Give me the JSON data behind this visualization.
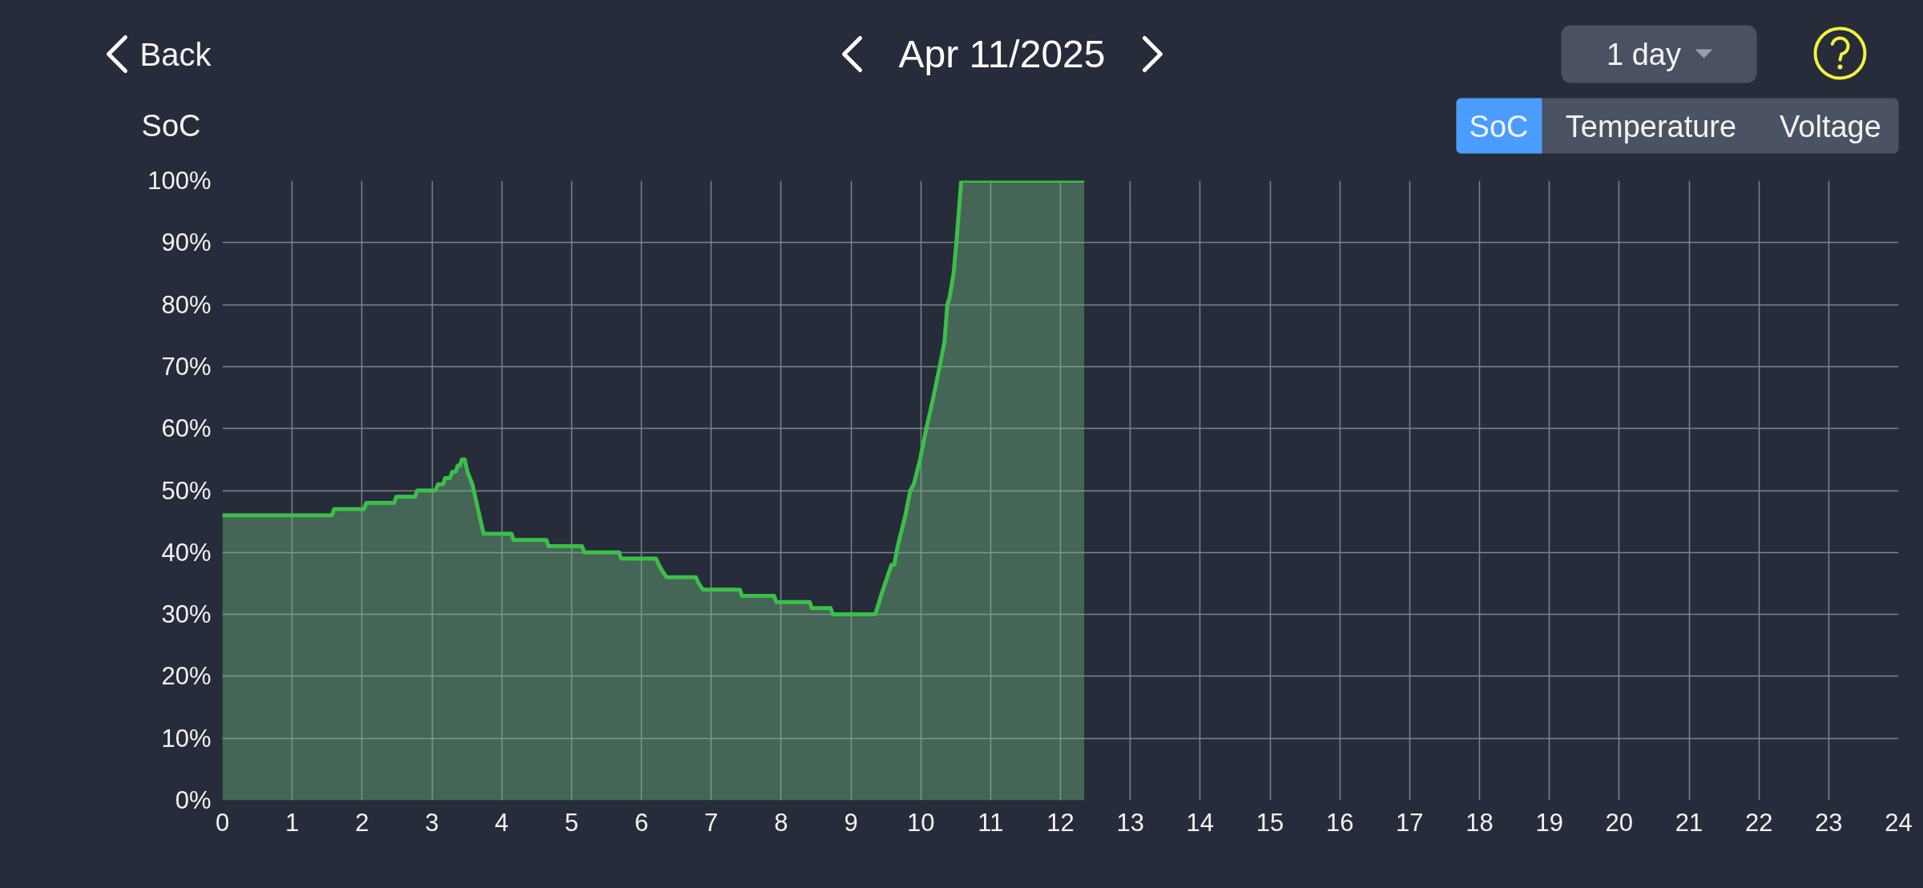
{
  "chart_data": {
    "type": "area",
    "title": "Apr 11/2025",
    "ylabel": "SoC",
    "annotations": [
      "Back",
      "1 day",
      "SoC",
      "Temperature",
      "Voltage"
    ],
    "x": [
      0,
      1.57,
      1.6,
      2.03,
      2.06,
      2.46,
      2.49,
      2.76,
      2.79,
      3.05,
      3.09,
      3.16,
      3.19,
      3.26,
      3.29,
      3.34,
      3.37,
      3.4,
      3.43,
      3.47,
      3.51,
      3.58,
      3.64,
      3.7,
      3.74,
      4.14,
      4.17,
      4.64,
      4.67,
      5.15,
      5.18,
      5.68,
      5.71,
      6.21,
      6.25,
      6.3,
      6.36,
      6.78,
      6.82,
      6.88,
      7.41,
      7.44,
      7.9,
      7.93,
      8.41,
      8.44,
      8.71,
      8.74,
      9.35,
      9.43,
      9.52,
      9.58,
      9.62,
      9.67,
      9.78,
      9.85,
      9.9,
      9.99,
      10.08,
      10.18,
      10.27,
      10.34,
      10.38,
      10.41,
      10.47,
      10.51,
      10.58,
      12.34
    ],
    "series": [
      {
        "color": "#3cbf49",
        "values": [
          46,
          46,
          47,
          47,
          48,
          48,
          49,
          49,
          50,
          50,
          51,
          51,
          52,
          52,
          53,
          53,
          54,
          54,
          55,
          55,
          53,
          51,
          48,
          45,
          43,
          43,
          42,
          42,
          41,
          41,
          40,
          40,
          39,
          39,
          38,
          37,
          36,
          36,
          35,
          34,
          34,
          33,
          33,
          32,
          32,
          31,
          31,
          30,
          30,
          33,
          36,
          38,
          38,
          41,
          46,
          50,
          51,
          55,
          60,
          65,
          70,
          74,
          80,
          81,
          85,
          90,
          100,
          100
        ]
      }
    ],
    "xlim": [
      0,
      24
    ],
    "xticks": [
      0,
      1,
      2,
      3,
      4,
      5,
      6,
      7,
      8,
      9,
      10,
      11,
      12,
      13,
      14,
      15,
      16,
      17,
      18,
      19,
      20,
      21,
      22,
      23,
      24
    ],
    "ylim": [
      0,
      100
    ],
    "yticks": [
      {
        "value": 0,
        "label": "0%"
      },
      {
        "value": 10,
        "label": "10%"
      },
      {
        "value": 20,
        "label": "20%"
      },
      {
        "value": 30,
        "label": "30%"
      },
      {
        "value": 40,
        "label": "40%"
      },
      {
        "value": 50,
        "label": "50%"
      },
      {
        "value": 60,
        "label": "60%"
      },
      {
        "value": 70,
        "label": "70%"
      },
      {
        "value": 80,
        "label": "80%"
      },
      {
        "value": 90,
        "label": "90%"
      },
      {
        "value": 100,
        "label": "100%"
      }
    ],
    "grid": true
  }
}
